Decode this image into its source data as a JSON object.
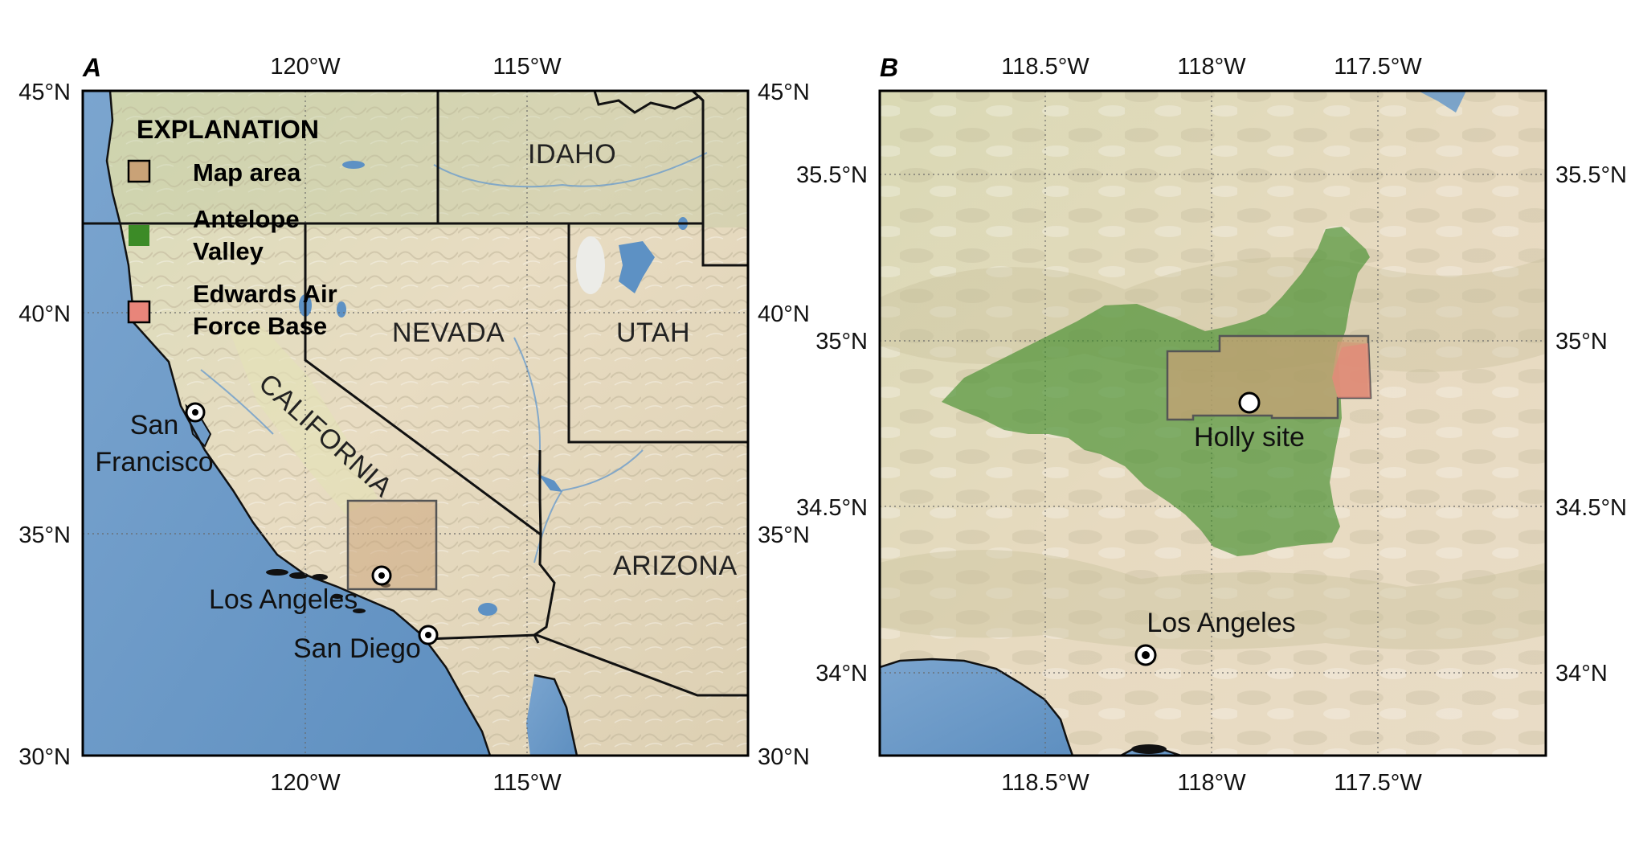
{
  "panel_a": {
    "letter": "A",
    "lat_ticks": [
      "45°N",
      "40°N",
      "35°N",
      "30°N"
    ],
    "lon_ticks": [
      "120°W",
      "115°W"
    ],
    "legend": {
      "title": "EXPLANATION",
      "items": [
        {
          "line1": "Map area",
          "line2": "",
          "color": "#c9a277"
        },
        {
          "line1": "Antelope",
          "line2": "Valley",
          "color": "#3c8b27"
        },
        {
          "line1": "Edwards Air",
          "line2": "Force Base",
          "color": "#e8857a"
        }
      ]
    },
    "states": {
      "idaho": "IDAHO",
      "nevada": "NEVADA",
      "utah": "UTAH",
      "california": "CALIFORNIA",
      "arizona": "ARIZONA"
    },
    "cities": {
      "sf_line1": "San",
      "sf_line2": "Francisco",
      "la": "Los Angeles",
      "sd": "San Diego"
    }
  },
  "panel_b": {
    "letter": "B",
    "lat_ticks": [
      "35.5°N",
      "35°N",
      "34.5°N",
      "34°N"
    ],
    "lon_ticks": [
      "118.5°W",
      "118°W",
      "117.5°W"
    ],
    "labels": {
      "holly": "Holly site",
      "la": "Los Angeles"
    }
  },
  "colors": {
    "ocean": "#6f9cc9",
    "land": "#e6dcc4",
    "map_area": "#c9a277",
    "antelope_valley": "#3c8b27",
    "edwards": "#e8857a"
  }
}
